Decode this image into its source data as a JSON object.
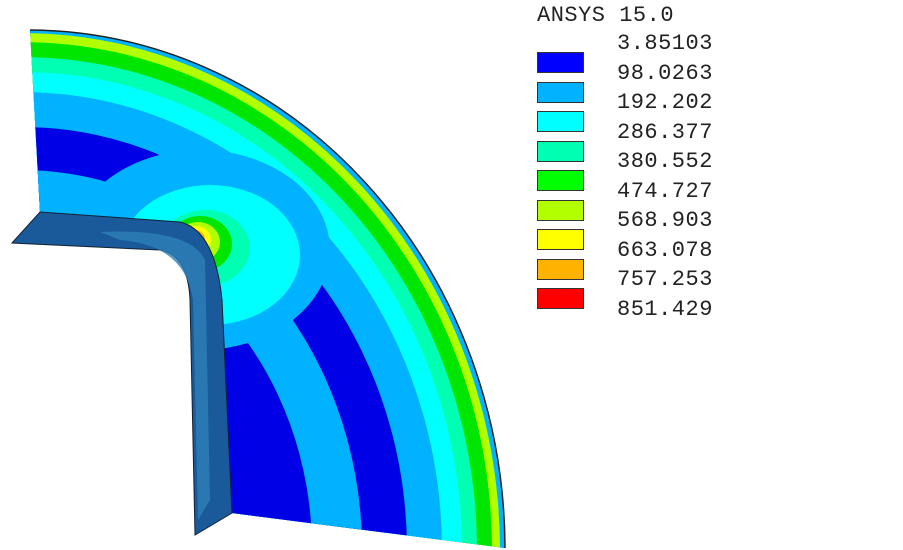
{
  "legend": {
    "title": "ANSYS 15.0",
    "values": [
      "3.85103",
      "98.0263",
      "192.202",
      "286.377",
      "380.552",
      "474.727",
      "568.903",
      "663.078",
      "757.253",
      "851.429"
    ],
    "colors": [
      "#0000ff",
      "#00b2ff",
      "#00ffff",
      "#00ffb2",
      "#00ff00",
      "#b2ff00",
      "#ffff00",
      "#ffb200",
      "#ff0000"
    ]
  }
}
